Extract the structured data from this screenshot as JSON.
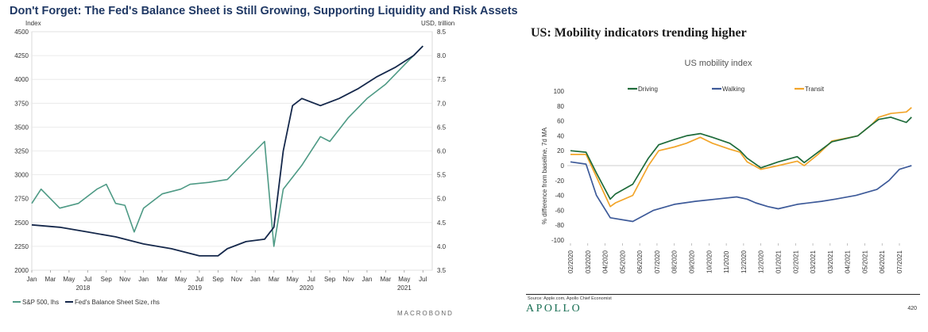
{
  "left": {
    "title": "Don't Forget: The Fed's Balance Sheet is Still Growing, Supporting Liquidity and Risk Assets",
    "left_axis_label": "Index",
    "right_axis_label": "USD, trillion",
    "brand": "MACROBOND",
    "legend": [
      "S&P 500, lhs",
      "Fed's Balance Sheet Size, rhs"
    ],
    "colors": {
      "sp500": "#4e9a85",
      "fed": "#15284b"
    },
    "chart_data": {
      "type": "line",
      "x_tick_labels": [
        "Jan",
        "Mar",
        "May",
        "Jul",
        "Sep",
        "Nov",
        "Jan",
        "Mar",
        "May",
        "Jul",
        "Sep",
        "Nov",
        "Jan",
        "Mar",
        "May",
        "Jul",
        "Sep",
        "Nov",
        "Jan",
        "Mar",
        "May",
        "Jul"
      ],
      "year_labels": [
        "2018",
        "2019",
        "2020",
        "2021"
      ],
      "ylim_left": [
        2000,
        4500
      ],
      "yticks_left": [
        "2000",
        "2250",
        "2500",
        "2750",
        "3000",
        "3250",
        "3500",
        "3750",
        "4000",
        "4250",
        "4500"
      ],
      "ylim_right": [
        3.5,
        8.5
      ],
      "yticks_right": [
        "3.5",
        "4.0",
        "4.5",
        "5.0",
        "5.5",
        "6.0",
        "6.5",
        "7.0",
        "7.5",
        "8.0",
        "8.5"
      ],
      "series": [
        {
          "name": "S&P 500, lhs",
          "axis": "left",
          "x": [
            "2018-01",
            "2018-02",
            "2018-04",
            "2018-06",
            "2018-08",
            "2018-09",
            "2018-10",
            "2018-11",
            "2018-12",
            "2019-01",
            "2019-03",
            "2019-05",
            "2019-06",
            "2019-08",
            "2019-10",
            "2019-12",
            "2020-01",
            "2020-02",
            "2020-03",
            "2020-04",
            "2020-06",
            "2020-08",
            "2020-09",
            "2020-11",
            "2021-01",
            "2021-03",
            "2021-05",
            "2021-07"
          ],
          "values": [
            2700,
            2850,
            2650,
            2700,
            2850,
            2900,
            2700,
            2680,
            2400,
            2650,
            2800,
            2850,
            2900,
            2920,
            2950,
            3150,
            3250,
            3350,
            2250,
            2850,
            3100,
            3400,
            3350,
            3600,
            3800,
            3950,
            4150,
            4350
          ]
        },
        {
          "name": "Fed's Balance Sheet Size, rhs",
          "axis": "right",
          "x": [
            "2018-01",
            "2018-04",
            "2018-07",
            "2018-10",
            "2019-01",
            "2019-04",
            "2019-07",
            "2019-09",
            "2019-10",
            "2019-12",
            "2020-02",
            "2020-03",
            "2020-04",
            "2020-05",
            "2020-06",
            "2020-08",
            "2020-10",
            "2020-12",
            "2021-02",
            "2021-04",
            "2021-06",
            "2021-07"
          ],
          "values": [
            4.45,
            4.4,
            4.3,
            4.2,
            4.05,
            3.95,
            3.8,
            3.8,
            3.95,
            4.1,
            4.15,
            4.4,
            6.0,
            6.95,
            7.1,
            6.95,
            7.1,
            7.3,
            7.55,
            7.75,
            8.0,
            8.2
          ]
        }
      ]
    }
  },
  "right": {
    "title": "US: Mobility indicators trending higher",
    "subtitle": "US mobility index",
    "ylabel": "% difference from baseline, 7d MA",
    "source": "Source: Apple.com, Apollo Chief Economist",
    "brand": "APOLLO",
    "page_number": "420",
    "colors": {
      "driving": "#1e6b3a",
      "walking": "#3d5a99",
      "transit": "#f2a52a"
    },
    "chart_data": {
      "type": "line",
      "x_tick_labels": [
        "02/2020",
        "03/2020",
        "04/2020",
        "05/2020",
        "06/2020",
        "07/2020",
        "08/2020",
        "09/2020",
        "10/2020",
        "11/2020",
        "12/2020",
        "12/2020",
        "01/2021",
        "02/2021",
        "03/2021",
        "03/2021",
        "04/2021",
        "05/2021",
        "06/2021",
        "07/2021"
      ],
      "ylim": [
        -100,
        100
      ],
      "yticks": [
        "-100",
        "-80",
        "-60",
        "-40",
        "-20",
        "0",
        "20",
        "40",
        "60",
        "80",
        "100"
      ],
      "series": [
        {
          "name": "Driving",
          "x": [
            0,
            0.9,
            1.5,
            2.3,
            2.6,
            3.6,
            4.5,
            5.1,
            6.0,
            6.7,
            7.5,
            8.2,
            9.2,
            9.8,
            10.2,
            11.0,
            12.0,
            13.1,
            13.5,
            14.3,
            15.1,
            16.6,
            17.4,
            17.8,
            18.5,
            19.4,
            19.7
          ],
          "values": [
            20,
            18,
            -10,
            -45,
            -38,
            -25,
            10,
            28,
            35,
            40,
            43,
            38,
            30,
            20,
            10,
            -3,
            5,
            12,
            4,
            18,
            32,
            40,
            55,
            62,
            65,
            58,
            65
          ]
        },
        {
          "name": "Walking",
          "x": [
            0,
            0.9,
            1.5,
            2.3,
            3.6,
            4.8,
            6.0,
            7.2,
            8.4,
            9.6,
            10.2,
            10.7,
            11.4,
            12.0,
            13.1,
            14.5,
            15.3,
            16.5,
            17.7,
            18.4,
            19.0,
            19.7
          ],
          "values": [
            5,
            2,
            -40,
            -70,
            -75,
            -60,
            -52,
            -48,
            -45,
            -42,
            -45,
            -50,
            -55,
            -58,
            -52,
            -48,
            -45,
            -40,
            -32,
            -20,
            -5,
            0
          ]
        },
        {
          "name": "Transit",
          "x": [
            0,
            0.9,
            1.5,
            2.3,
            2.6,
            3.6,
            4.5,
            5.1,
            6.0,
            6.7,
            7.5,
            8.2,
            9.2,
            9.8,
            10.2,
            11.0,
            12.0,
            13.1,
            13.5,
            14.3,
            15.1,
            16.6,
            17.4,
            17.8,
            18.5,
            19.4,
            19.7
          ],
          "values": [
            15,
            15,
            -15,
            -55,
            -50,
            -40,
            0,
            20,
            25,
            30,
            38,
            30,
            22,
            18,
            5,
            -5,
            0,
            6,
            0,
            15,
            33,
            40,
            55,
            65,
            70,
            72,
            78
          ]
        }
      ]
    }
  }
}
